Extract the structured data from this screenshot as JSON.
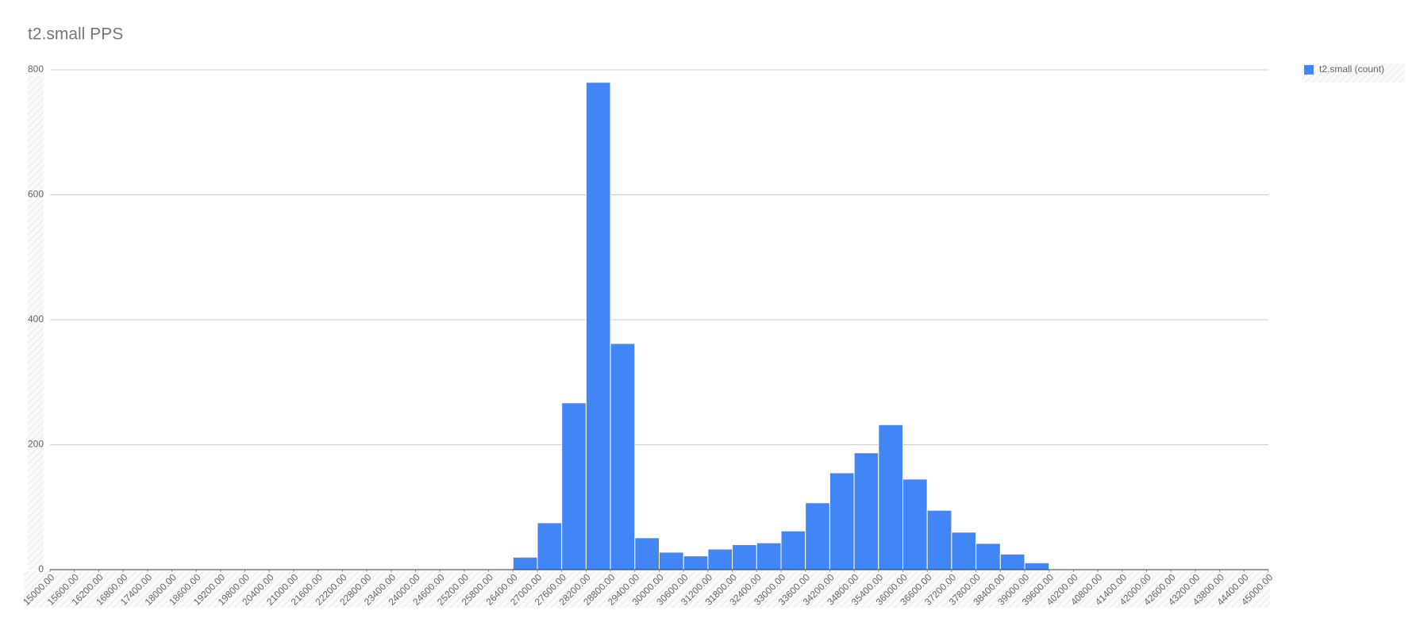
{
  "chart_data": {
    "type": "histogram",
    "title": "t2.small PPS",
    "bins": [
      15000,
      15600,
      16200,
      16800,
      17400,
      18000,
      18600,
      19200,
      19800,
      20400,
      21000,
      21600,
      22200,
      22800,
      23400,
      24000,
      24600,
      25200,
      25800,
      26400,
      27000,
      27600,
      28200,
      28800,
      29400,
      30000,
      30600,
      31200,
      31800,
      32400,
      33000,
      33600,
      34200,
      34800,
      35400,
      36000,
      36600,
      37200,
      37800,
      38400,
      39000,
      39600,
      40200,
      40800,
      41400,
      42000,
      42600,
      43200,
      43800,
      44400,
      45000
    ],
    "series": [
      {
        "name": "t2.small (count)",
        "color": "#4285f4",
        "values": [
          0,
          0,
          0,
          1,
          0,
          0,
          0,
          0,
          1,
          1,
          1,
          1,
          1,
          0,
          0,
          1,
          1,
          0,
          0,
          20,
          75,
          267,
          780,
          362,
          51,
          28,
          22,
          33,
          40,
          43,
          62,
          107,
          155,
          187,
          232,
          145,
          95,
          60,
          42,
          25,
          11,
          1,
          1,
          0,
          0,
          0,
          0,
          0,
          0,
          0
        ]
      }
    ],
    "xlim": [
      15000,
      45000
    ],
    "xticks": [
      {
        "value": 15000,
        "label": "15000.00"
      },
      {
        "value": 15600,
        "label": "15600.00"
      },
      {
        "value": 16200,
        "label": "16200.00"
      },
      {
        "value": 16800,
        "label": "16800.00"
      },
      {
        "value": 17400,
        "label": "17400.00"
      },
      {
        "value": 18000,
        "label": "18000.00"
      },
      {
        "value": 18600,
        "label": "18600.00"
      },
      {
        "value": 19200,
        "label": "19200.00"
      },
      {
        "value": 19800,
        "label": "19800.00"
      },
      {
        "value": 20400,
        "label": "20400.00"
      },
      {
        "value": 21000,
        "label": "21000.00"
      },
      {
        "value": 21600,
        "label": "21600.00"
      },
      {
        "value": 22200,
        "label": "22200.00"
      },
      {
        "value": 22800,
        "label": "22800.00"
      },
      {
        "value": 23400,
        "label": "23400.00"
      },
      {
        "value": 24000,
        "label": "24000.00"
      },
      {
        "value": 24600,
        "label": "24600.00"
      },
      {
        "value": 25200,
        "label": "25200.00"
      },
      {
        "value": 25800,
        "label": "25800.00"
      },
      {
        "value": 26400,
        "label": "26400.00"
      },
      {
        "value": 27000,
        "label": "27000.00"
      },
      {
        "value": 27600,
        "label": "27600.00"
      },
      {
        "value": 28200,
        "label": "28200.00"
      },
      {
        "value": 28800,
        "label": "28800.00"
      },
      {
        "value": 29400,
        "label": "29400.00"
      },
      {
        "value": 30000,
        "label": "30000.00"
      },
      {
        "value": 30600,
        "label": "30600.00"
      },
      {
        "value": 31200,
        "label": "31200.00"
      },
      {
        "value": 31800,
        "label": "31800.00"
      },
      {
        "value": 32400,
        "label": "32400.00"
      },
      {
        "value": 33000,
        "label": "33000.00"
      },
      {
        "value": 33600,
        "label": "33600.00"
      },
      {
        "value": 34200,
        "label": "34200.00"
      },
      {
        "value": 34800,
        "label": "34800.00"
      },
      {
        "value": 35400,
        "label": "35400.00"
      },
      {
        "value": 36000,
        "label": "36000.00"
      },
      {
        "value": 36600,
        "label": "36600.00"
      },
      {
        "value": 37200,
        "label": "37200.00"
      },
      {
        "value": 37800,
        "label": "37800.00"
      },
      {
        "value": 38400,
        "label": "38400.00"
      },
      {
        "value": 39000,
        "label": "39000.00"
      },
      {
        "value": 39600,
        "label": "39600.00"
      },
      {
        "value": 40200,
        "label": "40200.00"
      },
      {
        "value": 40800,
        "label": "40800.00"
      },
      {
        "value": 41400,
        "label": "41400.00"
      },
      {
        "value": 42000,
        "label": "42000.00"
      },
      {
        "value": 42600,
        "label": "42600.00"
      },
      {
        "value": 43200,
        "label": "43200.00"
      },
      {
        "value": 43800,
        "label": "43800.00"
      },
      {
        "value": 44400,
        "label": "44400.00"
      },
      {
        "value": 45000,
        "label": "45000.00"
      }
    ],
    "ylim": [
      0,
      800
    ],
    "yticks": [
      0,
      200,
      400,
      600,
      800
    ],
    "grid": true,
    "legend": "right"
  }
}
